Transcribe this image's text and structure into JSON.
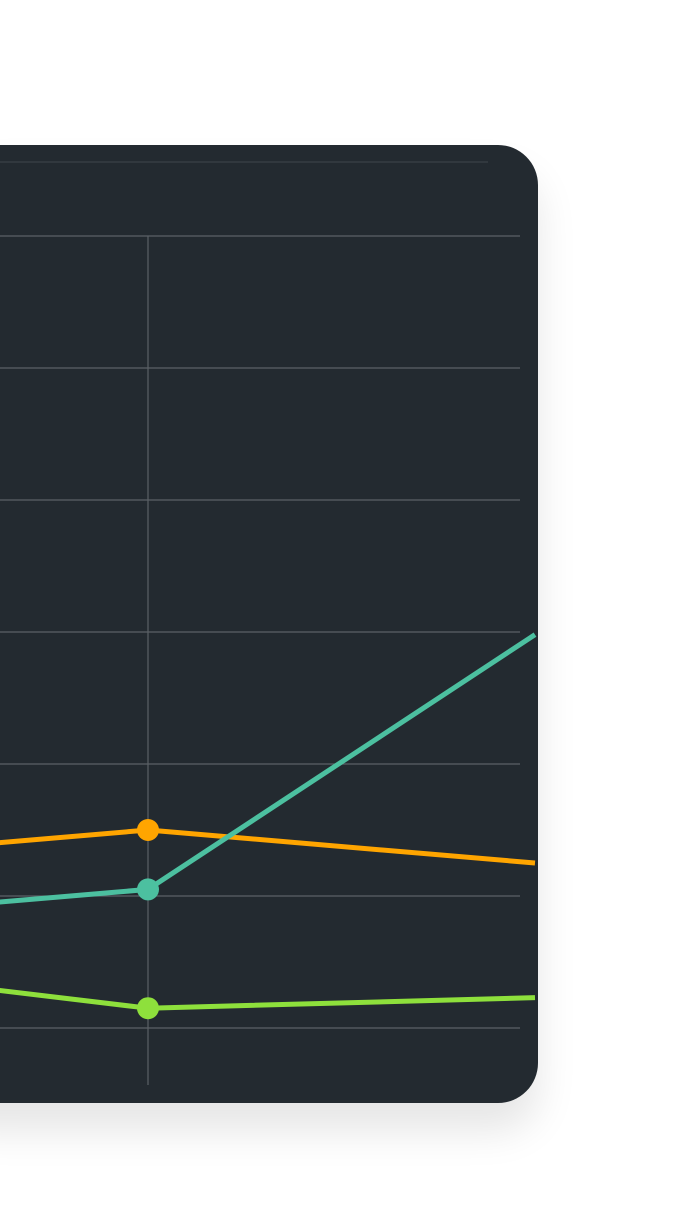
{
  "colors": {
    "page_background": "#ffffff",
    "card_background": "#232a30",
    "gridline": "#5b6166",
    "header_divider": "#3f474d"
  },
  "chart_data": {
    "type": "line",
    "title": "",
    "xlabel": "",
    "ylabel": "",
    "grid": true,
    "legend": "none",
    "ylim": [
      0,
      6
    ],
    "x": [
      0,
      1,
      2
    ],
    "series": [
      {
        "color": "#ffa500",
        "values": [
          1.25,
          1.5,
          1.25
        ]
      },
      {
        "color": "#4cc0a0",
        "values": [
          0.8,
          1.05,
          2.98
        ]
      },
      {
        "color": "#8ee03c",
        "values": [
          0.5,
          0.15,
          0.23
        ]
      }
    ]
  }
}
